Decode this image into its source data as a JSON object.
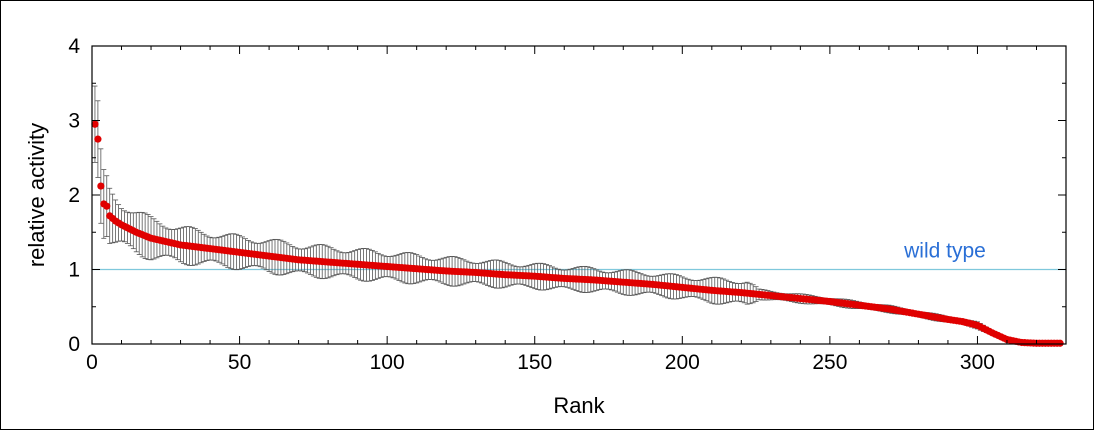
{
  "chart_data": {
    "type": "scatter",
    "title": "",
    "xlabel": "Rank",
    "ylabel": "relative activity",
    "xlim": [
      0,
      330
    ],
    "ylim": [
      0,
      4
    ],
    "xticks": [
      0,
      50,
      100,
      150,
      200,
      250,
      300
    ],
    "yticks": [
      0,
      1,
      2,
      3,
      4
    ],
    "grid": false,
    "reference_line": {
      "y": 1,
      "label": "wild type",
      "color": "#7fc8dc",
      "label_color": "#2a6fd6"
    },
    "series": [
      {
        "marker_color": "#e00000",
        "errorbar_color": "#555555",
        "anchors_x": [
          1,
          2,
          3,
          4,
          5,
          6,
          8,
          10,
          15,
          20,
          30,
          40,
          50,
          60,
          70,
          80,
          90,
          100,
          110,
          120,
          130,
          140,
          150,
          160,
          170,
          180,
          190,
          200,
          210,
          220,
          230,
          240,
          250,
          260,
          270,
          280,
          290,
          295,
          300,
          305,
          310,
          315,
          320,
          328
        ],
        "anchors_y": [
          2.95,
          2.75,
          2.12,
          1.88,
          1.85,
          1.72,
          1.65,
          1.6,
          1.5,
          1.42,
          1.33,
          1.28,
          1.23,
          1.18,
          1.13,
          1.1,
          1.07,
          1.04,
          1.01,
          0.98,
          0.96,
          0.93,
          0.91,
          0.88,
          0.86,
          0.83,
          0.8,
          0.76,
          0.72,
          0.69,
          0.65,
          0.61,
          0.57,
          0.52,
          0.47,
          0.4,
          0.33,
          0.3,
          0.25,
          0.15,
          0.06,
          0.02,
          0.01,
          0.01
        ],
        "err_anchors_x": [
          1,
          3,
          5,
          10,
          20,
          40,
          60,
          100,
          150,
          200,
          222,
          226,
          250,
          280,
          300,
          310,
          328
        ],
        "err_anchors": [
          0.48,
          0.42,
          0.35,
          0.28,
          0.25,
          0.2,
          0.2,
          0.18,
          0.15,
          0.14,
          0.16,
          0.06,
          0.05,
          0.04,
          0.04,
          0.02,
          0.01
        ]
      }
    ]
  }
}
